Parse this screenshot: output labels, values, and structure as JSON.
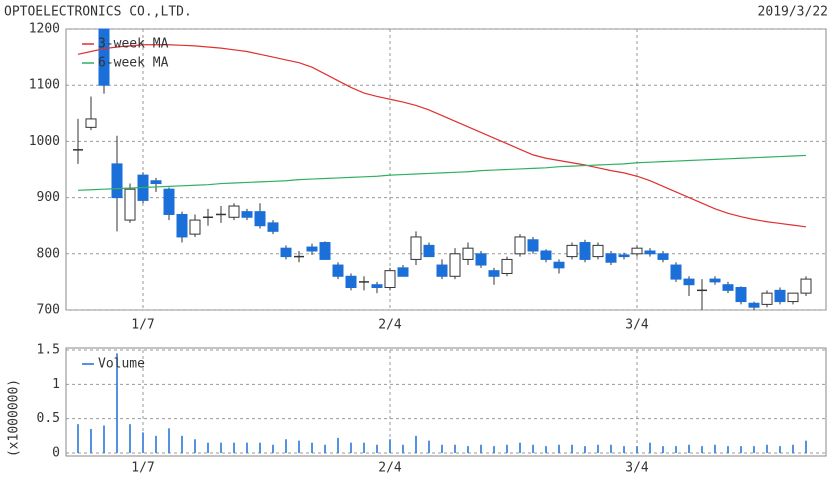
{
  "chart_data": [
    {
      "type": "candlestick",
      "title": "OPTOELECTRONICS CO.,LTD.",
      "date": "2019/3/22",
      "categories": [
        null,
        null,
        null,
        null,
        null,
        "1/7",
        null,
        null,
        null,
        null,
        null,
        null,
        null,
        null,
        null,
        null,
        null,
        null,
        null,
        null,
        null,
        null,
        null,
        null,
        "2/4",
        null,
        null,
        null,
        null,
        null,
        null,
        null,
        null,
        null,
        null,
        null,
        null,
        null,
        null,
        null,
        null,
        null,
        null,
        "3/4",
        null,
        null,
        null,
        null,
        null,
        null,
        null,
        null,
        null,
        null,
        null,
        null,
        null
      ],
      "open": [
        985,
        1025,
        1200,
        960,
        860,
        940,
        930,
        915,
        870,
        835,
        865,
        870,
        865,
        875,
        875,
        855,
        810,
        795,
        812,
        820,
        780,
        760,
        750,
        745,
        740,
        775,
        790,
        815,
        780,
        760,
        790,
        800,
        770,
        765,
        800,
        825,
        805,
        785,
        795,
        820,
        795,
        800,
        798,
        800,
        805,
        800,
        780,
        755,
        735,
        755,
        745,
        740,
        712,
        710,
        735,
        715,
        730
      ],
      "high": [
        1040,
        1080,
        1200,
        1010,
        925,
        945,
        935,
        918,
        875,
        870,
        880,
        885,
        890,
        880,
        890,
        860,
        815,
        805,
        818,
        822,
        785,
        765,
        760,
        750,
        775,
        780,
        840,
        820,
        790,
        810,
        820,
        805,
        775,
        795,
        835,
        830,
        808,
        790,
        820,
        825,
        820,
        805,
        802,
        815,
        810,
        805,
        785,
        760,
        755,
        760,
        750,
        742,
        715,
        735,
        740,
        730,
        760
      ],
      "low": [
        960,
        1020,
        1085,
        840,
        855,
        890,
        910,
        860,
        820,
        830,
        850,
        855,
        860,
        860,
        845,
        835,
        790,
        785,
        798,
        790,
        755,
        735,
        735,
        730,
        735,
        760,
        780,
        795,
        755,
        755,
        780,
        775,
        745,
        760,
        795,
        800,
        785,
        765,
        790,
        785,
        790,
        780,
        790,
        795,
        795,
        785,
        750,
        725,
        700,
        745,
        730,
        710,
        700,
        705,
        710,
        710,
        725
      ],
      "close": [
        985,
        1040,
        1100,
        900,
        915,
        895,
        925,
        870,
        830,
        860,
        865,
        870,
        885,
        865,
        850,
        840,
        795,
        795,
        805,
        790,
        760,
        740,
        750,
        740,
        770,
        760,
        830,
        795,
        760,
        800,
        810,
        780,
        760,
        790,
        830,
        805,
        790,
        775,
        815,
        790,
        815,
        785,
        795,
        810,
        800,
        790,
        755,
        745,
        735,
        750,
        735,
        715,
        705,
        730,
        715,
        730,
        755
      ],
      "up_color": "#ffffff",
      "down_color": "#1a6fd8",
      "series": [
        {
          "name": "3-week MA",
          "color": "#e03030",
          "values": [
            1155,
            1160,
            1165,
            1168,
            1170,
            1172,
            1172,
            1172,
            1171,
            1170,
            1168,
            1166,
            1163,
            1160,
            1155,
            1150,
            1145,
            1140,
            1132,
            1120,
            1108,
            1096,
            1086,
            1080,
            1075,
            1070,
            1064,
            1056,
            1046,
            1036,
            1026,
            1016,
            1006,
            996,
            986,
            976,
            970,
            966,
            962,
            958,
            953,
            948,
            944,
            938,
            930,
            920,
            910,
            900,
            890,
            880,
            872,
            866,
            861,
            857,
            854,
            851,
            848
          ]
        },
        {
          "name": "6-week MA",
          "color": "#30b060",
          "values": [
            913,
            914,
            915,
            916,
            917,
            918,
            919,
            920,
            921,
            922,
            923,
            925,
            926,
            927,
            928,
            929,
            930,
            932,
            933,
            934,
            935,
            936,
            937,
            938,
            940,
            941,
            942,
            943,
            944,
            945,
            946,
            948,
            949,
            950,
            951,
            952,
            953,
            955,
            956,
            957,
            958,
            959,
            960,
            962,
            963,
            964,
            965,
            966,
            967,
            968,
            969,
            970,
            971,
            972,
            973,
            974,
            975
          ]
        }
      ],
      "ylim": [
        700,
        1200
      ],
      "yticks": [
        700,
        800,
        900,
        1000,
        1100,
        1200
      ],
      "grid": true
    },
    {
      "type": "bar",
      "y_label": "(x1000000)",
      "categories": [
        null,
        null,
        null,
        null,
        null,
        "1/7",
        null,
        null,
        null,
        null,
        null,
        null,
        null,
        null,
        null,
        null,
        null,
        null,
        null,
        null,
        null,
        null,
        null,
        null,
        "2/4",
        null,
        null,
        null,
        null,
        null,
        null,
        null,
        null,
        null,
        null,
        null,
        null,
        null,
        null,
        null,
        null,
        null,
        null,
        "3/4",
        null,
        null,
        null,
        null,
        null,
        null,
        null,
        null,
        null,
        null,
        null,
        null,
        null
      ],
      "series": [
        {
          "name": "Volume",
          "color": "#1a6fd8",
          "values": [
            0.42,
            0.35,
            0.4,
            1.45,
            0.42,
            0.3,
            0.25,
            0.36,
            0.25,
            0.2,
            0.15,
            0.15,
            0.15,
            0.15,
            0.15,
            0.12,
            0.2,
            0.18,
            0.15,
            0.12,
            0.22,
            0.15,
            0.15,
            0.12,
            0.2,
            0.12,
            0.25,
            0.18,
            0.12,
            0.12,
            0.1,
            0.12,
            0.1,
            0.12,
            0.15,
            0.12,
            0.1,
            0.12,
            0.12,
            0.1,
            0.12,
            0.12,
            0.1,
            0.1,
            0.15,
            0.1,
            0.1,
            0.12,
            0.1,
            0.12,
            0.1,
            0.1,
            0.1,
            0.12,
            0.1,
            0.12,
            0.18
          ]
        }
      ],
      "ylim": [
        0,
        1.5
      ],
      "yticks": [
        0,
        0.5,
        1,
        1.5
      ],
      "grid": true
    }
  ]
}
